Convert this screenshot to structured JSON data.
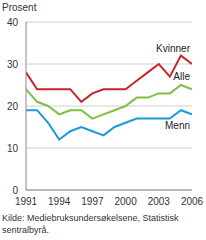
{
  "chart_data": {
    "type": "line",
    "y_label": "Prosent",
    "source": "Kilde: Mediebruksundersøkelsene, Statistisk sentralbyrå.",
    "x": [
      1991,
      1992,
      1993,
      1994,
      1995,
      1996,
      1997,
      1998,
      1999,
      2000,
      2001,
      2002,
      2003,
      2004,
      2005,
      2006
    ],
    "series": [
      {
        "name": "Kvinner",
        "color": "#c4262e",
        "values": [
          28,
          24,
          24,
          24,
          24,
          21,
          23,
          24,
          24,
          24,
          26,
          28,
          30,
          27,
          32,
          30
        ]
      },
      {
        "name": "Alle",
        "color": "#7cc142",
        "values": [
          24,
          21,
          20,
          18,
          19,
          19,
          17,
          18,
          19,
          20,
          22,
          22,
          23,
          23,
          25,
          24
        ]
      },
      {
        "name": "Menn",
        "color": "#1c9ad6",
        "values": [
          19,
          19,
          16,
          12,
          14,
          15,
          14,
          13,
          15,
          16,
          17,
          17,
          17,
          17,
          19,
          18
        ]
      }
    ],
    "xlim": [
      1991,
      2006
    ],
    "xticks": [
      1991,
      1994,
      1997,
      2000,
      2003,
      2006
    ],
    "ylim": [
      0,
      40
    ],
    "yticks": [
      0,
      10,
      20,
      30,
      40
    ],
    "grid": true
  }
}
